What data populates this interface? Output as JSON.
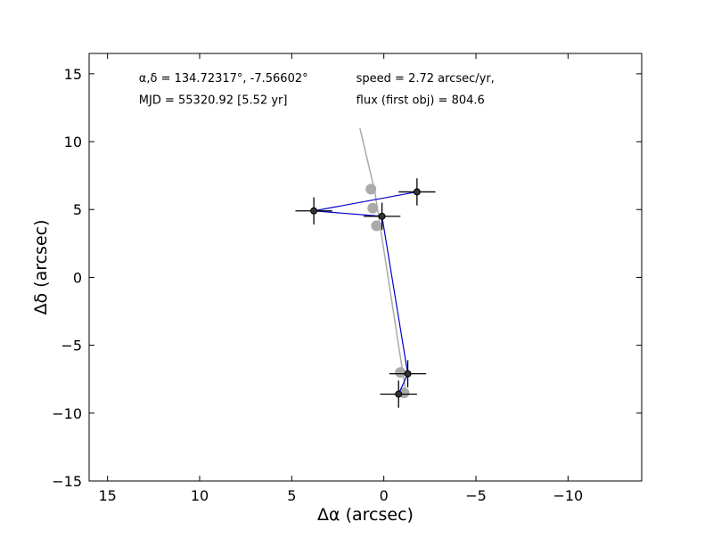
{
  "chart_data": {
    "type": "scatter",
    "title": "",
    "xlabel": "Δα (arcsec)",
    "ylabel": "Δδ (arcsec)",
    "xlim": [
      16,
      -14
    ],
    "ylim": [
      -15,
      16.5
    ],
    "x_ticks": [
      15,
      10,
      5,
      0,
      -5,
      -10
    ],
    "x_tick_labels": [
      "15",
      "10",
      "5",
      "0",
      "−5",
      "−10"
    ],
    "y_ticks": [
      -15,
      -10,
      -5,
      0,
      5,
      10,
      15
    ],
    "y_tick_labels": [
      "−15",
      "−10",
      "−5",
      "0",
      "5",
      "10",
      "15"
    ],
    "grid": false,
    "annotations": {
      "coords": "α,δ = 134.72317°, -7.56602°",
      "mjd": "MJD = 55320.92 [5.52 yr]",
      "speed": "speed = 2.72 arcsec/yr,",
      "flux": "flux (first obj) = 804.6"
    },
    "series": [
      {
        "kind": "model-track",
        "color": "#aaaaaa",
        "line": [
          [
            1.3,
            11.0
          ],
          [
            0.5,
            6.4
          ],
          [
            -1.2,
            -8.5
          ]
        ],
        "x": [
          0.7,
          0.6,
          0.4,
          -0.9,
          -1.1
        ],
        "y": [
          6.5,
          5.1,
          3.8,
          -7.0,
          -8.5
        ]
      },
      {
        "kind": "observed",
        "color": "#0000cc",
        "x": [
          -1.8,
          3.8,
          0.1,
          -1.3,
          -0.8
        ],
        "y": [
          6.3,
          4.9,
          4.5,
          -7.1,
          -8.6
        ],
        "xerr": [
          1.0,
          1.0,
          1.0,
          1.0,
          1.0
        ],
        "yerr": [
          1.0,
          1.0,
          1.0,
          1.0,
          1.0
        ]
      }
    ]
  }
}
